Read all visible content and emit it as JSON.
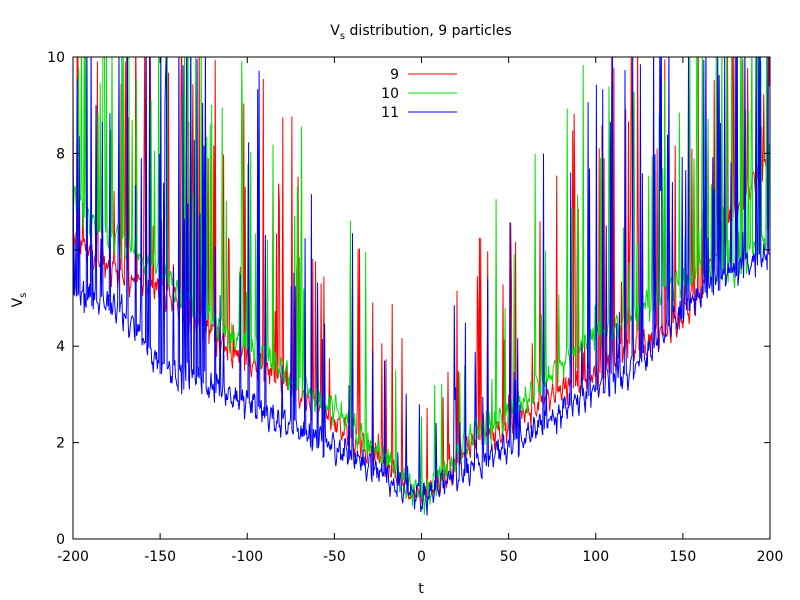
{
  "chart_data": {
    "type": "line",
    "title": {
      "main": "V",
      "sub": "s",
      "rest": " distribution, 9 particles"
    },
    "xlabel": "t",
    "ylabel": {
      "main": "V",
      "sub": "s"
    },
    "xlim": [
      -200,
      200
    ],
    "ylim": [
      0,
      10
    ],
    "xticks": [
      -200,
      -150,
      -100,
      -50,
      0,
      50,
      100,
      150,
      200
    ],
    "yticks": [
      0,
      2,
      4,
      6,
      8,
      10
    ],
    "xtick_labels": [
      "-200",
      "-150",
      "-100",
      "-50",
      "0",
      "50",
      "100",
      "150",
      "200"
    ],
    "ytick_labels": [
      "0",
      "2",
      "4",
      "6",
      "8",
      "10"
    ],
    "grid": false,
    "legend_position": "top-center",
    "series": [
      {
        "name": "9",
        "color": "#ff0000",
        "envelope": [
          [
            -200,
            5.9
          ],
          [
            -185,
            5.4
          ],
          [
            -170,
            5.0
          ],
          [
            -150,
            4.7
          ],
          [
            -130,
            4.1
          ],
          [
            -110,
            3.5
          ],
          [
            -90,
            3.1
          ],
          [
            -70,
            2.6
          ],
          [
            -50,
            2.0
          ],
          [
            -30,
            1.4
          ],
          [
            -15,
            0.9
          ],
          [
            0,
            0.45
          ],
          [
            15,
            0.9
          ],
          [
            30,
            1.7
          ],
          [
            45,
            1.8
          ],
          [
            60,
            2.2
          ],
          [
            80,
            2.7
          ],
          [
            100,
            3.0
          ],
          [
            120,
            3.6
          ],
          [
            140,
            3.8
          ],
          [
            160,
            4.7
          ],
          [
            180,
            6.4
          ],
          [
            200,
            7.5
          ]
        ]
      },
      {
        "name": "10",
        "color": "#00e000",
        "envelope": [
          [
            -200,
            6.6
          ],
          [
            -185,
            6.0
          ],
          [
            -170,
            5.7
          ],
          [
            -150,
            5.1
          ],
          [
            -130,
            4.4
          ],
          [
            -110,
            3.8
          ],
          [
            -90,
            3.3
          ],
          [
            -70,
            2.8
          ],
          [
            -50,
            2.3
          ],
          [
            -30,
            1.6
          ],
          [
            -15,
            1.0
          ],
          [
            0,
            0.4
          ],
          [
            15,
            1.0
          ],
          [
            30,
            1.8
          ],
          [
            45,
            2.0
          ],
          [
            60,
            2.5
          ],
          [
            80,
            3.2
          ],
          [
            100,
            3.8
          ],
          [
            120,
            4.2
          ],
          [
            140,
            4.7
          ],
          [
            160,
            5.1
          ],
          [
            180,
            5.2
          ],
          [
            200,
            5.9
          ]
        ]
      },
      {
        "name": "11",
        "color": "#0000ff",
        "envelope": [
          [
            -200,
            4.7
          ],
          [
            -185,
            4.6
          ],
          [
            -170,
            4.2
          ],
          [
            -150,
            3.1
          ],
          [
            -130,
            2.9
          ],
          [
            -110,
            2.6
          ],
          [
            -90,
            2.2
          ],
          [
            -70,
            1.8
          ],
          [
            -50,
            1.5
          ],
          [
            -30,
            1.1
          ],
          [
            -15,
            0.7
          ],
          [
            0,
            0.4
          ],
          [
            15,
            0.8
          ],
          [
            30,
            1.1
          ],
          [
            45,
            1.4
          ],
          [
            60,
            1.7
          ],
          [
            80,
            2.2
          ],
          [
            100,
            2.7
          ],
          [
            120,
            3.1
          ],
          [
            140,
            3.9
          ],
          [
            160,
            4.7
          ],
          [
            180,
            5.1
          ],
          [
            200,
            5.5
          ]
        ]
      }
    ]
  }
}
